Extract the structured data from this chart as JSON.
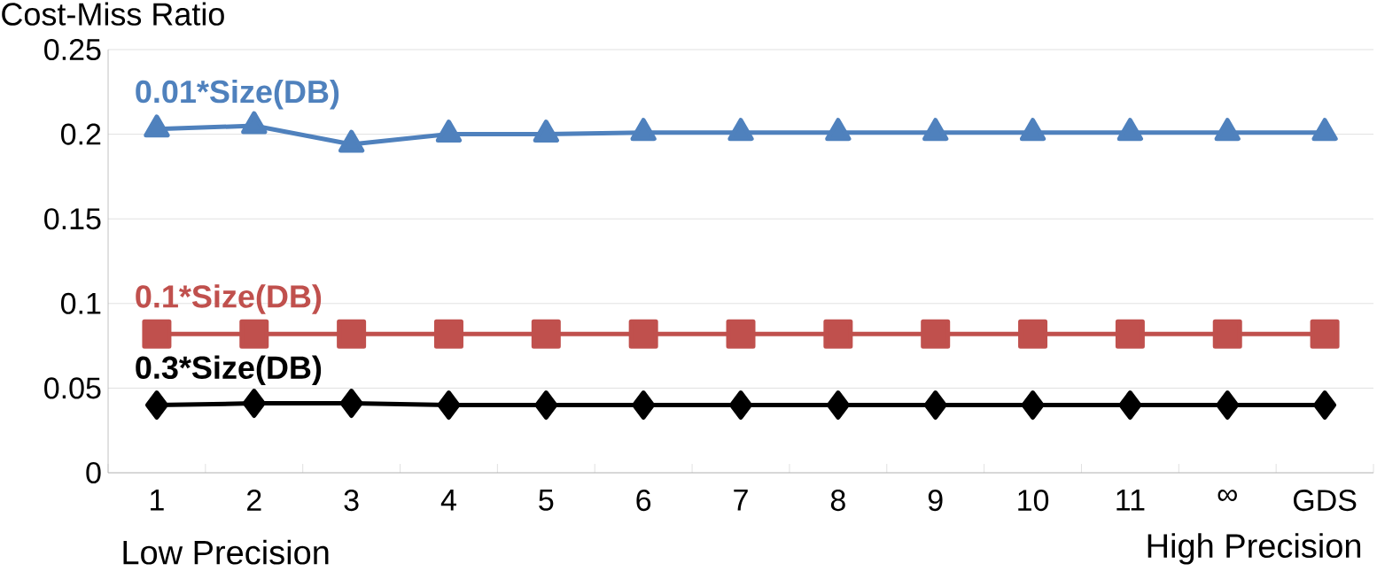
{
  "chart_data": {
    "type": "line",
    "ylabel": "Cost-Miss Ratio",
    "categories": [
      "1",
      "2",
      "3",
      "4",
      "5",
      "6",
      "7",
      "8",
      "9",
      "10",
      "11",
      "∞",
      "GDS"
    ],
    "series": [
      {
        "name": "0.01*Size(DB)",
        "color": "#4f81bd",
        "marker": "triangle",
        "values": [
          0.203,
          0.205,
          0.194,
          0.2,
          0.2,
          0.201,
          0.201,
          0.201,
          0.201,
          0.201,
          0.201,
          0.201,
          0.201
        ]
      },
      {
        "name": "0.1*Size(DB)",
        "color": "#c0504d",
        "marker": "square",
        "values": [
          0.082,
          0.082,
          0.082,
          0.082,
          0.082,
          0.082,
          0.082,
          0.082,
          0.082,
          0.082,
          0.082,
          0.082,
          0.082
        ]
      },
      {
        "name": "0.3*Size(DB)",
        "color": "#000000",
        "marker": "diamond",
        "values": [
          0.04,
          0.041,
          0.041,
          0.04,
          0.04,
          0.04,
          0.04,
          0.04,
          0.04,
          0.04,
          0.04,
          0.04,
          0.04
        ]
      }
    ],
    "ylim": [
      0,
      0.25
    ],
    "yticks": [
      0,
      0.05,
      0.1,
      0.15,
      0.2,
      0.25
    ],
    "grid": "y",
    "legend": false,
    "line_style": "solid",
    "annotations": [
      "Low Precision",
      "High Precision"
    ]
  }
}
